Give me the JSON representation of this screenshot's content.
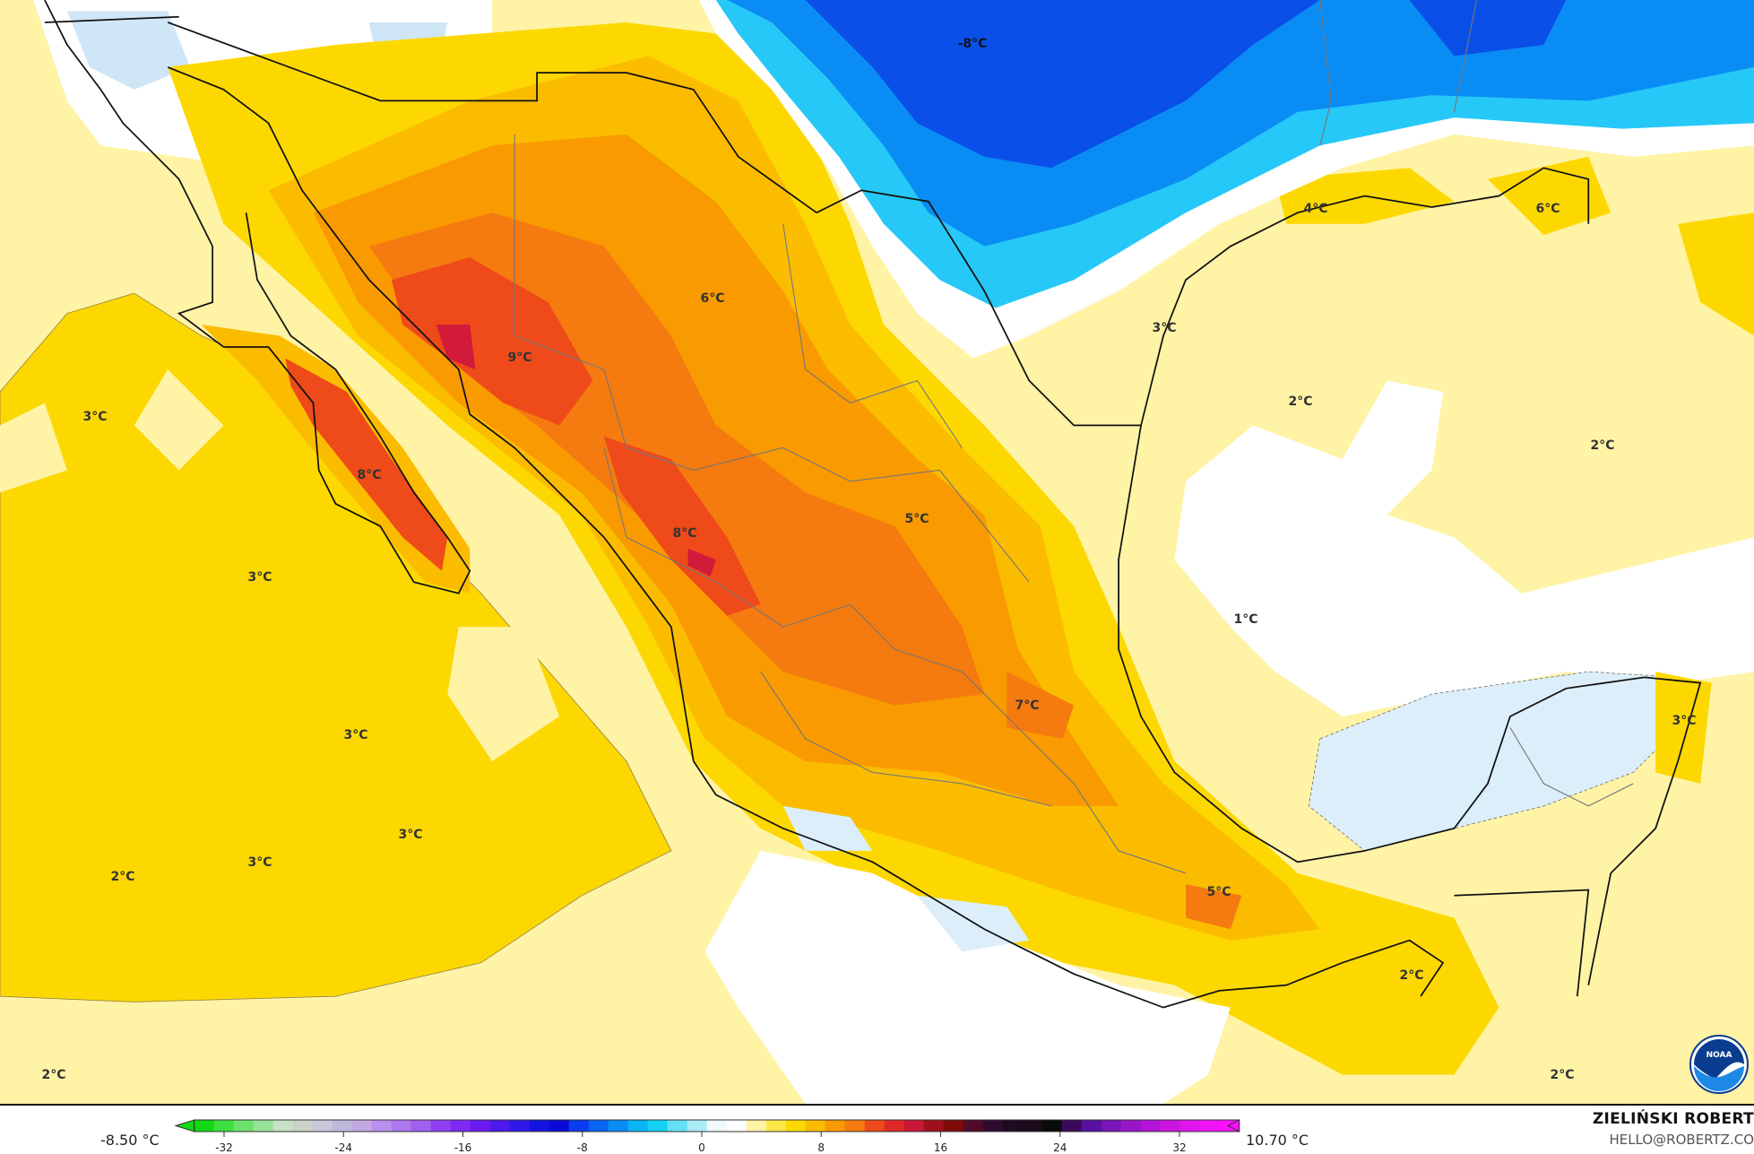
{
  "map": {
    "variable_unit": "°C",
    "colors": {
      "pale_yellow": "#fff3a6",
      "yellow": "#fdd800",
      "gold": "#fbbc00",
      "orange": "#f99a00",
      "dark_orange": "#f57a10",
      "red_orange": "#ee4a1a",
      "crimson": "#d21a3a",
      "white": "#ffffff",
      "pale_blue": "#dceefa",
      "light_blue": "#26c8f7",
      "blue": "#0a8cf5",
      "dark_blue": "#0a4fe8"
    },
    "contour_labels": [
      "-8°C",
      "4°C",
      "6°C",
      "6°C",
      "3°C",
      "9°C",
      "2°C",
      "3°C",
      "2°C",
      "8°C",
      "5°C",
      "8°C",
      "3°C",
      "1°C",
      "7°C",
      "3°C",
      "3°C",
      "3°C",
      "3°C",
      "2°C",
      "5°C",
      "2°C",
      "2°C",
      "2°C"
    ]
  },
  "colorbar": {
    "min_label": "-8.50 °C",
    "max_label": "10.70 °C",
    "ticks": [
      "-32",
      "-24",
      "-16",
      "-8",
      "0",
      "8",
      "16",
      "24",
      "32"
    ],
    "range": [
      -34,
      36
    ],
    "colors": [
      "#14d814",
      "#3ce03c",
      "#6ce26c",
      "#98e298",
      "#c8e0c8",
      "#c8d2c8",
      "#c8c8d8",
      "#c0b8dc",
      "#c4a8e4",
      "#b890ec",
      "#ac78f0",
      "#a060f0",
      "#9040f4",
      "#8028f4",
      "#6a1af0",
      "#4e18ec",
      "#3018e8",
      "#1414e0",
      "#0a0ad8",
      "#0a3cf0",
      "#0a64f4",
      "#0a8cf5",
      "#0ab4f6",
      "#14d0f6",
      "#64e0f6",
      "#aaecf8",
      "#f0f8fc",
      "#ffffff",
      "#fff3a6",
      "#fde84a",
      "#fdd800",
      "#fbbc00",
      "#f99a00",
      "#f57a10",
      "#ee4a1a",
      "#e02828",
      "#c81838",
      "#a0101a",
      "#800a0a",
      "#500a2a",
      "#300a30",
      "#200a20",
      "#1a0a1a",
      "#0a0a0a",
      "#3a0a5a",
      "#5a10a0",
      "#7a14b8",
      "#9a14c8",
      "#b414d8",
      "#cc14e0",
      "#e014ec",
      "#f014f4",
      "#ff10ff"
    ]
  },
  "credit": {
    "author": "ZIELIŃSKI ROBERT",
    "email": "HELLO@ROBERTZ.CO",
    "logo_text": "NOAA"
  }
}
